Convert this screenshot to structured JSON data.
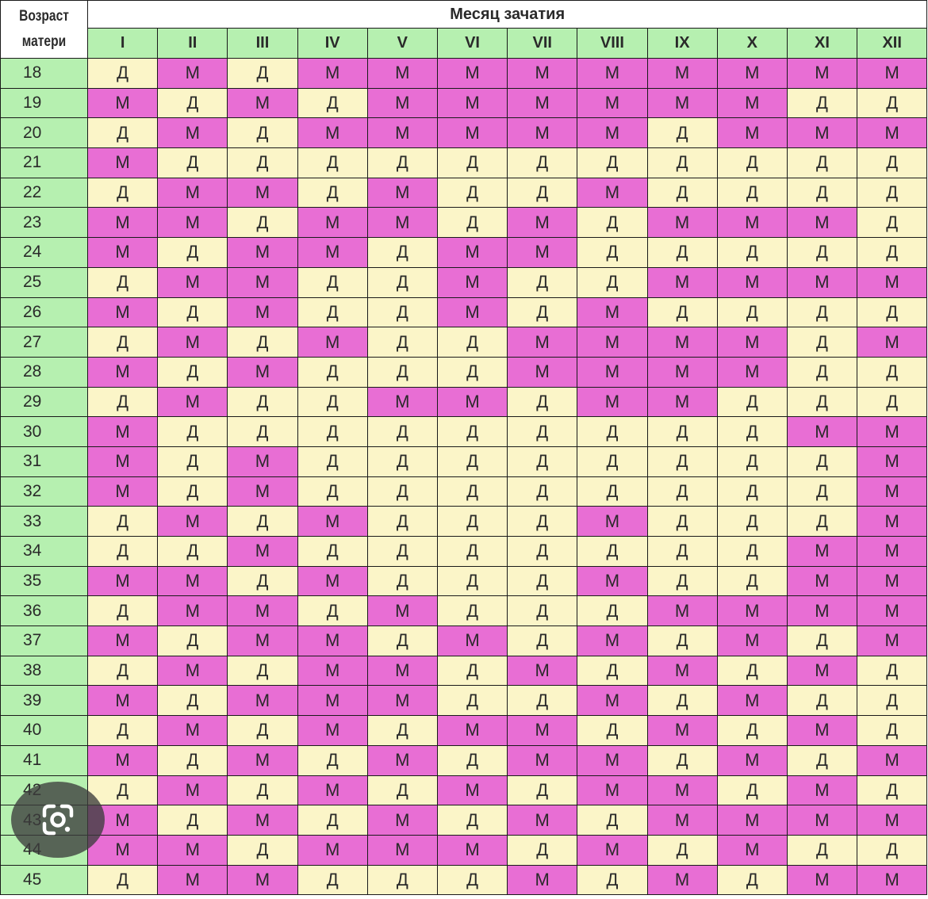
{
  "header": {
    "age_label_line1": "Возраст",
    "age_label_line2": "матери",
    "month_title": "Месяц зачатия",
    "months": [
      "I",
      "II",
      "III",
      "IV",
      "V",
      "VI",
      "VII",
      "VIII",
      "IX",
      "X",
      "XI",
      "XII"
    ]
  },
  "colors": {
    "girl": "#e86ed4",
    "boy": "#fbf5c8",
    "header_green": "#b6f0b0"
  },
  "rows": [
    {
      "age": "18",
      "cells": [
        "Д",
        "М",
        "Д",
        "М",
        "М",
        "М",
        "М",
        "М",
        "М",
        "М",
        "М",
        "М"
      ]
    },
    {
      "age": "19",
      "cells": [
        "М",
        "Д",
        "М",
        "Д",
        "М",
        "М",
        "М",
        "М",
        "М",
        "М",
        "Д",
        "Д"
      ]
    },
    {
      "age": "20",
      "cells": [
        "Д",
        "М",
        "Д",
        "М",
        "М",
        "М",
        "М",
        "М",
        "Д",
        "М",
        "М",
        "М"
      ]
    },
    {
      "age": "21",
      "cells": [
        "М",
        "Д",
        "Д",
        "Д",
        "Д",
        "Д",
        "Д",
        "Д",
        "Д",
        "Д",
        "Д",
        "Д"
      ]
    },
    {
      "age": "22",
      "cells": [
        "Д",
        "М",
        "М",
        "Д",
        "М",
        "Д",
        "Д",
        "М",
        "Д",
        "Д",
        "Д",
        "Д"
      ]
    },
    {
      "age": "23",
      "cells": [
        "М",
        "М",
        "Д",
        "М",
        "М",
        "Д",
        "М",
        "Д",
        "М",
        "М",
        "М",
        "Д"
      ]
    },
    {
      "age": "24",
      "cells": [
        "М",
        "Д",
        "М",
        "М",
        "Д",
        "М",
        "М",
        "Д",
        "Д",
        "Д",
        "Д",
        "Д"
      ]
    },
    {
      "age": "25",
      "cells": [
        "Д",
        "М",
        "М",
        "Д",
        "Д",
        "М",
        "Д",
        "Д",
        "М",
        "М",
        "М",
        "М"
      ]
    },
    {
      "age": "26",
      "cells": [
        "М",
        "Д",
        "М",
        "Д",
        "Д",
        "М",
        "Д",
        "М",
        "Д",
        "Д",
        "Д",
        "Д"
      ]
    },
    {
      "age": "27",
      "cells": [
        "Д",
        "М",
        "Д",
        "М",
        "Д",
        "Д",
        "М",
        "М",
        "М",
        "М",
        "Д",
        "М"
      ]
    },
    {
      "age": "28",
      "cells": [
        "М",
        "Д",
        "М",
        "Д",
        "Д",
        "Д",
        "М",
        "М",
        "М",
        "М",
        "Д",
        "Д"
      ]
    },
    {
      "age": "29",
      "cells": [
        "Д",
        "М",
        "Д",
        "Д",
        "М",
        "М",
        "Д",
        "М",
        "М",
        "Д",
        "Д",
        "Д"
      ]
    },
    {
      "age": "30",
      "cells": [
        "М",
        "Д",
        "Д",
        "Д",
        "Д",
        "Д",
        "Д",
        "Д",
        "Д",
        "Д",
        "М",
        "М"
      ]
    },
    {
      "age": "31",
      "cells": [
        "М",
        "Д",
        "М",
        "Д",
        "Д",
        "Д",
        "Д",
        "Д",
        "Д",
        "Д",
        "Д",
        "М"
      ]
    },
    {
      "age": "32",
      "cells": [
        "М",
        "Д",
        "М",
        "Д",
        "Д",
        "Д",
        "Д",
        "Д",
        "Д",
        "Д",
        "Д",
        "М"
      ]
    },
    {
      "age": "33",
      "cells": [
        "Д",
        "М",
        "Д",
        "М",
        "Д",
        "Д",
        "Д",
        "М",
        "Д",
        "Д",
        "Д",
        "М"
      ]
    },
    {
      "age": "34",
      "cells": [
        "Д",
        "Д",
        "М",
        "Д",
        "Д",
        "Д",
        "Д",
        "Д",
        "Д",
        "Д",
        "М",
        "М"
      ]
    },
    {
      "age": "35",
      "cells": [
        "М",
        "М",
        "Д",
        "М",
        "Д",
        "Д",
        "Д",
        "М",
        "Д",
        "Д",
        "М",
        "М"
      ]
    },
    {
      "age": "36",
      "cells": [
        "Д",
        "М",
        "М",
        "Д",
        "М",
        "Д",
        "Д",
        "Д",
        "М",
        "М",
        "М",
        "М"
      ]
    },
    {
      "age": "37",
      "cells": [
        "М",
        "Д",
        "М",
        "М",
        "Д",
        "М",
        "Д",
        "М",
        "Д",
        "М",
        "Д",
        "М"
      ]
    },
    {
      "age": "38",
      "cells": [
        "Д",
        "М",
        "Д",
        "М",
        "М",
        "Д",
        "М",
        "Д",
        "М",
        "Д",
        "М",
        "Д"
      ]
    },
    {
      "age": "39",
      "cells": [
        "М",
        "Д",
        "М",
        "М",
        "М",
        "Д",
        "Д",
        "М",
        "Д",
        "М",
        "Д",
        "Д"
      ]
    },
    {
      "age": "40",
      "cells": [
        "Д",
        "М",
        "Д",
        "М",
        "Д",
        "М",
        "М",
        "Д",
        "М",
        "Д",
        "М",
        "Д"
      ]
    },
    {
      "age": "41",
      "cells": [
        "М",
        "Д",
        "М",
        "Д",
        "М",
        "Д",
        "М",
        "М",
        "Д",
        "М",
        "Д",
        "М"
      ]
    },
    {
      "age": "42",
      "cells": [
        "Д",
        "М",
        "Д",
        "М",
        "Д",
        "М",
        "Д",
        "М",
        "М",
        "Д",
        "М",
        "Д"
      ]
    },
    {
      "age": "43",
      "cells": [
        "М",
        "Д",
        "М",
        "Д",
        "М",
        "Д",
        "М",
        "Д",
        "М",
        "М",
        "М",
        "М"
      ]
    },
    {
      "age": "44",
      "cells": [
        "М",
        "М",
        "Д",
        "М",
        "М",
        "М",
        "Д",
        "М",
        "Д",
        "М",
        "Д",
        "Д"
      ]
    },
    {
      "age": "45",
      "cells": [
        "Д",
        "М",
        "М",
        "Д",
        "Д",
        "Д",
        "М",
        "Д",
        "М",
        "Д",
        "М",
        "М"
      ]
    }
  ],
  "overlay": {
    "lens_icon": "google-lens-icon"
  }
}
